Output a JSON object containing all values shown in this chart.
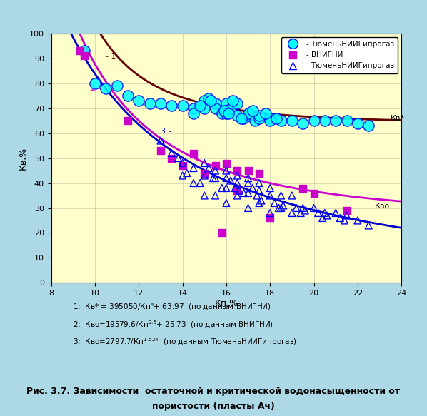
{
  "title": "Рис. 3.7. Зависимости  остаточной и критической водонасыщенности от\n пористости (пласты Ач)",
  "xlabel": "Кп,%",
  "ylabel": "Кв,%",
  "xlim": [
    8,
    24
  ],
  "ylim": [
    0,
    100
  ],
  "xticks": [
    8,
    10,
    12,
    14,
    16,
    18,
    20,
    22,
    24
  ],
  "yticks": [
    0,
    10,
    20,
    30,
    40,
    50,
    60,
    70,
    80,
    90,
    100
  ],
  "bg_color": "#FFFFCC",
  "outer_bg": "#ADD8E6",
  "legend_labels": [
    "- ТюменьНИИГипрогаз",
    "- ВНИГНИ",
    "- ТюменьНИИГипрогаз"
  ],
  "legend_colors": [
    "cyan",
    "#CC00CC",
    "#4444FF"
  ],
  "legend_markers": [
    "o",
    "s",
    "^"
  ],
  "formula_text": "1: Кв* = 395050/Кп⁴+ 63.97  (по данным ВНИГНИ)\n2: Кво=19579.6/Кп²⋅⁵+ 25.73  (по данным ВНИГНИ)\n3: Кво=2797.7/Кп¹⋅⁵²⁴  (по данным ТюменьНИИГипрогаз)",
  "curve1_color": "#660000",
  "curve2_color": "#CC00CC",
  "curve3_color": "#0000CC",
  "scatter_cyan_x": [
    9.5,
    10.0,
    10.5,
    11.0,
    11.5,
    12.0,
    12.5,
    13.0,
    13.5,
    14.0,
    14.5,
    14.5,
    15.0,
    15.0,
    15.2,
    15.5,
    15.5,
    15.8,
    16.0,
    16.0,
    16.2,
    16.5,
    16.5,
    16.8,
    17.0,
    17.0,
    17.3,
    17.5,
    17.5,
    18.0,
    18.0,
    18.5,
    19.0,
    19.5,
    20.0,
    20.5,
    21.0,
    21.5,
    22.0,
    22.5,
    16.3,
    16.7,
    15.3,
    17.8,
    14.8,
    15.9,
    16.1,
    17.2,
    18.3
  ],
  "scatter_cyan_y": [
    93,
    80,
    78,
    79,
    75,
    73,
    72,
    72,
    71,
    71,
    70,
    68,
    70,
    73,
    74,
    72,
    70,
    68,
    72,
    68,
    70,
    72,
    67,
    66,
    67,
    68,
    65,
    66,
    67,
    66,
    65,
    65,
    65,
    64,
    65,
    65,
    65,
    65,
    64,
    63,
    73,
    66,
    73,
    68,
    71,
    69,
    68,
    69,
    66
  ],
  "scatter_magenta_x": [
    9.3,
    9.5,
    11.5,
    13.0,
    13.5,
    14.0,
    14.5,
    15.0,
    15.5,
    16.0,
    16.5,
    16.5,
    17.0,
    17.5,
    18.0,
    19.5,
    20.0,
    21.5,
    15.8
  ],
  "scatter_magenta_y": [
    93,
    91,
    65,
    53,
    50,
    47,
    52,
    44,
    47,
    48,
    45,
    37,
    45,
    44,
    26,
    38,
    36,
    29,
    20
  ],
  "scatter_blue_x": [
    13.0,
    13.5,
    14.0,
    14.0,
    14.5,
    14.5,
    15.0,
    15.0,
    15.0,
    15.5,
    15.5,
    15.5,
    16.0,
    16.0,
    16.0,
    16.0,
    16.5,
    16.5,
    16.5,
    17.0,
    17.0,
    17.0,
    17.0,
    17.5,
    17.5,
    17.5,
    18.0,
    18.0,
    18.0,
    18.5,
    18.5,
    19.0,
    19.0,
    19.5,
    20.0,
    20.5,
    21.0,
    21.5,
    22.0,
    22.5,
    14.2,
    14.8,
    15.2,
    15.8,
    16.2,
    16.8,
    17.2,
    18.2,
    19.2,
    20.2,
    21.2,
    15.4,
    16.4,
    17.4,
    18.4,
    19.4,
    20.4,
    21.4,
    13.8,
    16.6,
    17.6,
    18.6,
    19.6,
    20.6
  ],
  "scatter_blue_y": [
    57,
    52,
    48,
    43,
    46,
    40,
    48,
    43,
    35,
    45,
    42,
    35,
    45,
    42,
    38,
    32,
    43,
    40,
    35,
    42,
    40,
    36,
    30,
    40,
    37,
    32,
    38,
    35,
    28,
    35,
    30,
    35,
    28,
    30,
    30,
    28,
    28,
    27,
    25,
    23,
    44,
    40,
    46,
    38,
    41,
    36,
    38,
    32,
    30,
    28,
    26,
    42,
    38,
    35,
    30,
    28,
    26,
    25,
    50,
    37,
    33,
    31,
    29,
    27
  ]
}
